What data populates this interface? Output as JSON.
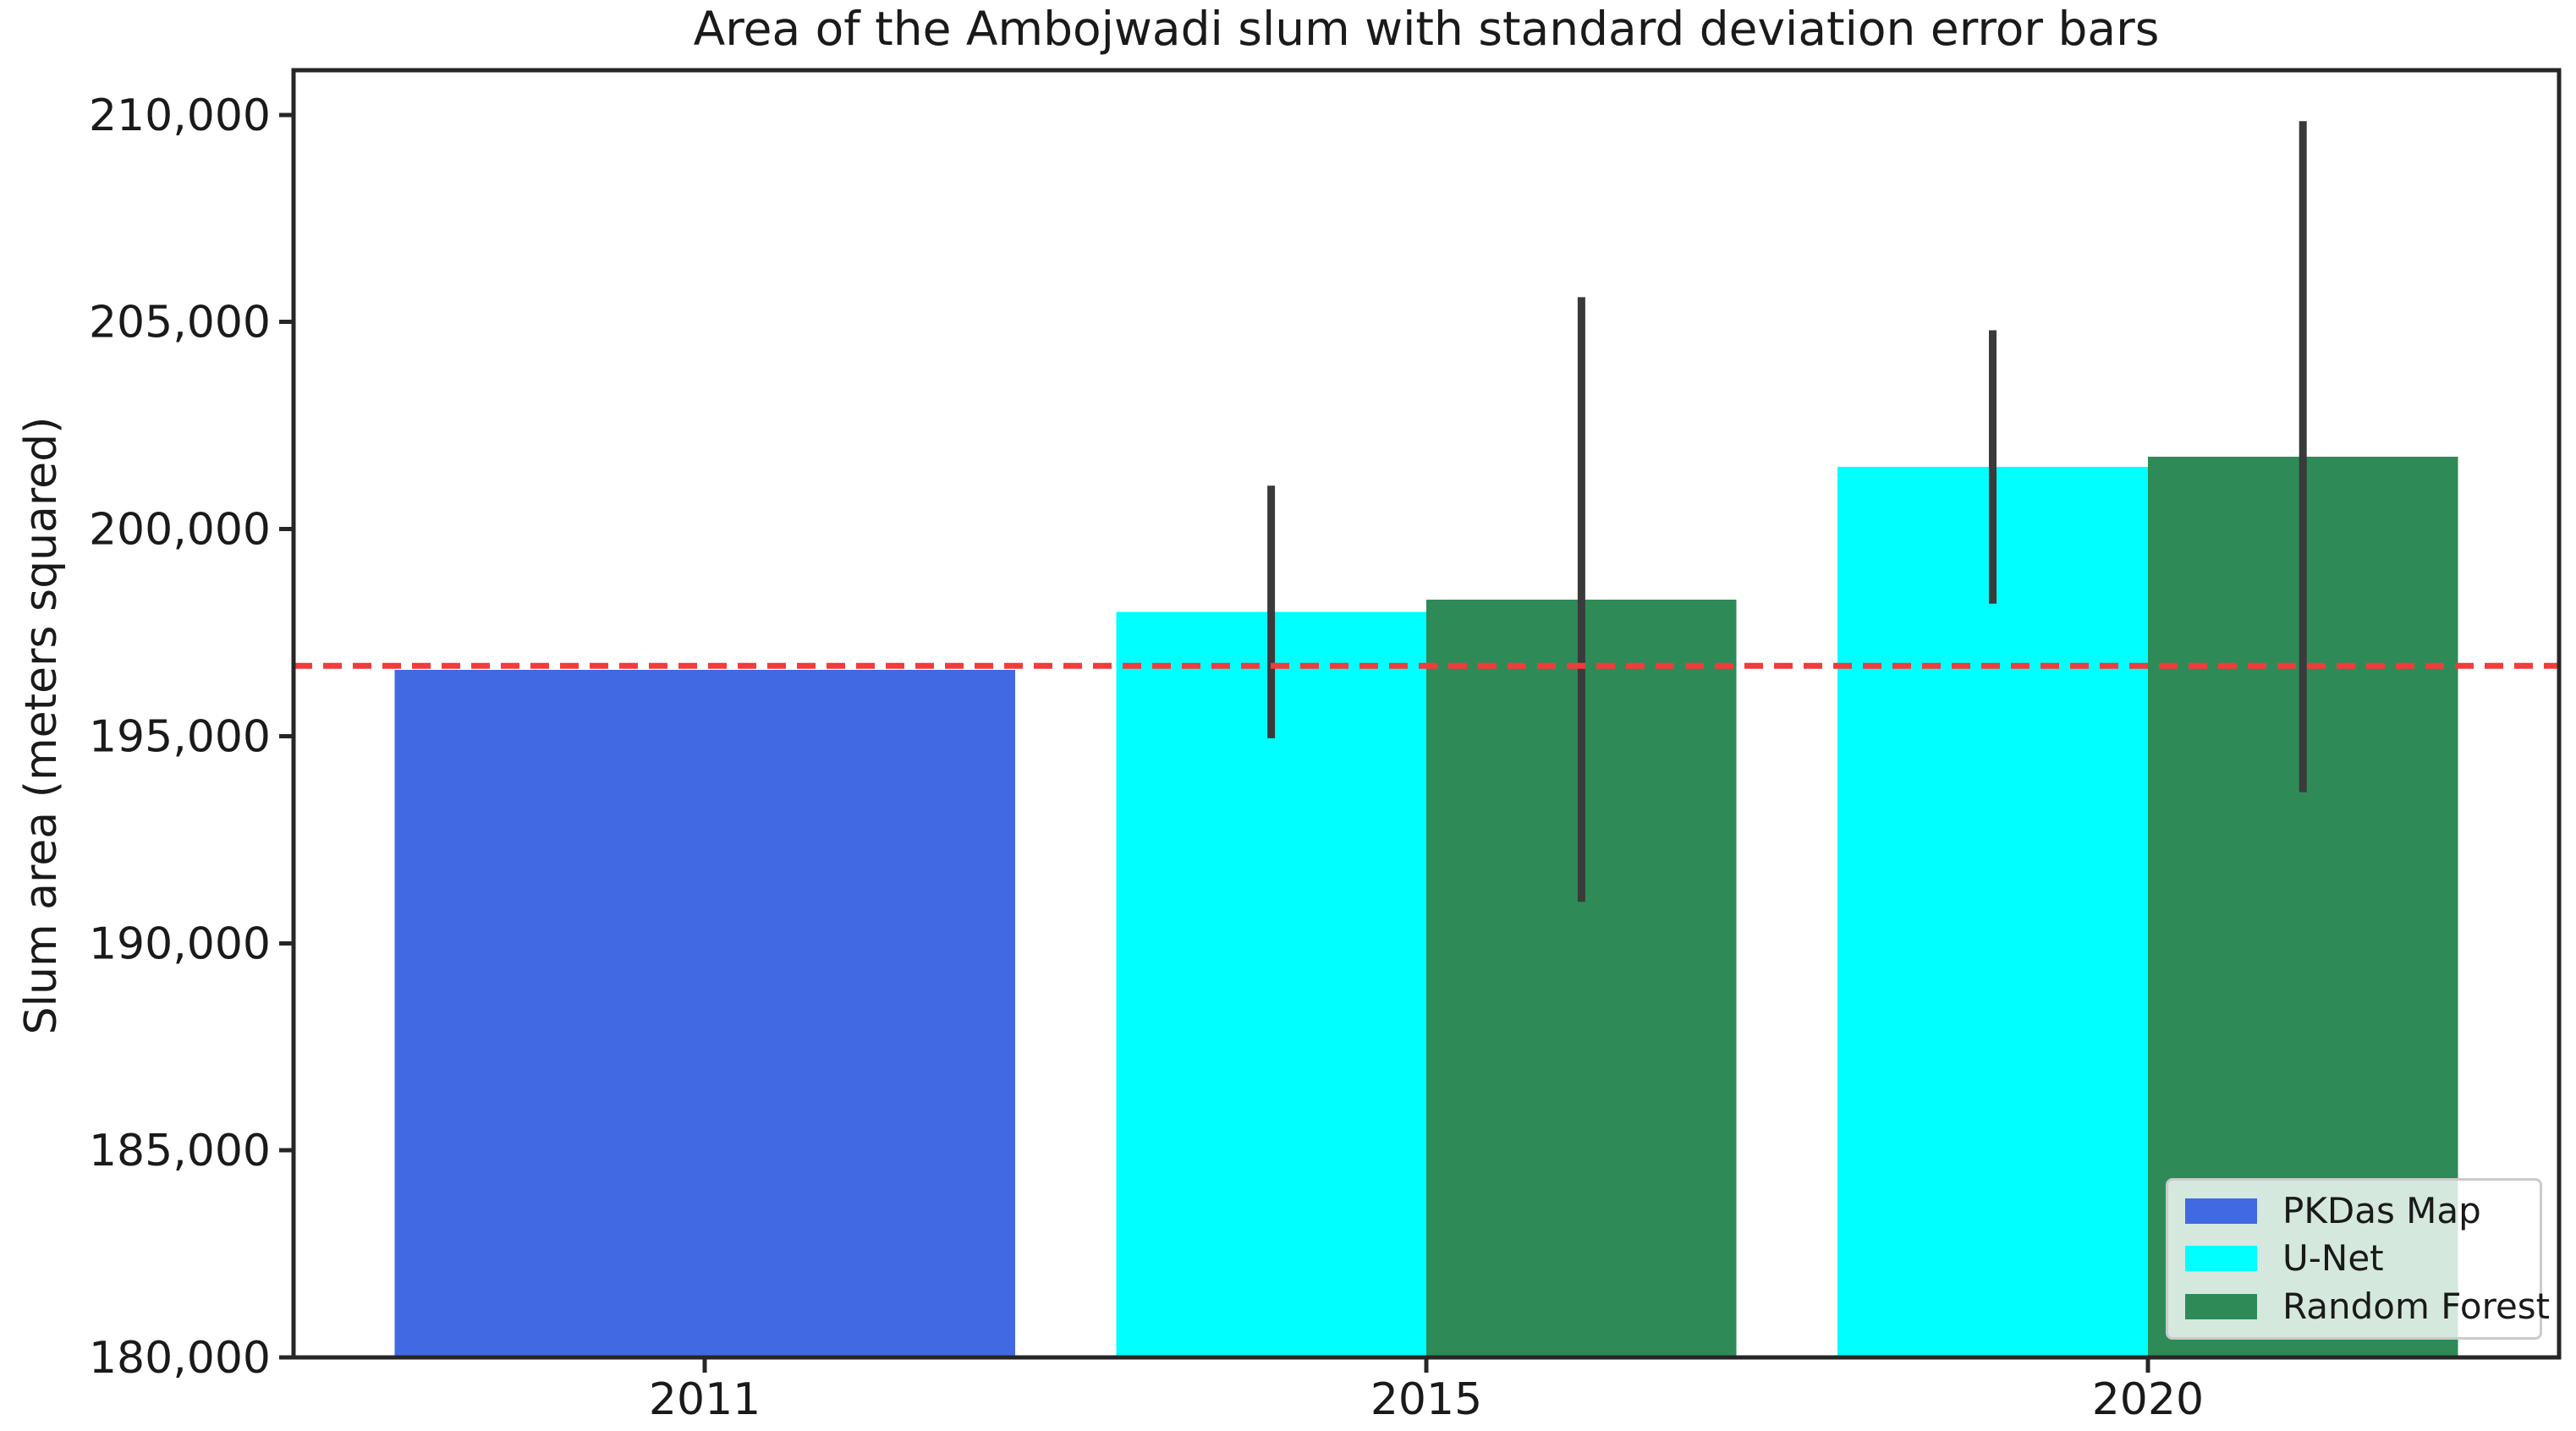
{
  "chart_data": {
    "type": "bar",
    "title": "Area of the Ambojwadi slum with standard deviation error bars",
    "xlabel": "",
    "ylabel": "Slum area (meters squared)",
    "categories": [
      "2011",
      "2015",
      "2020"
    ],
    "series": [
      {
        "name": "PKDas Map",
        "color": "#4169E1",
        "values": [
          196600,
          null,
          null
        ],
        "errors": [
          null,
          null,
          null
        ]
      },
      {
        "name": "U-Net",
        "color": "#00FFFF",
        "values": [
          null,
          198000,
          201500
        ],
        "errors": [
          null,
          3050,
          3300
        ]
      },
      {
        "name": "Random Forest",
        "color": "#2E8B57",
        "values": [
          null,
          198300,
          201750
        ],
        "errors": [
          null,
          7300,
          8100
        ]
      }
    ],
    "reference_line": {
      "value": 196700,
      "color": "#F23B3B",
      "style": "dashed"
    },
    "error_bar_color": "#3A3A3A",
    "ylim": [
      180000,
      211080
    ],
    "yticks": [
      180000,
      185000,
      190000,
      195000,
      200000,
      205000,
      210000
    ],
    "ytick_format": "comma",
    "x_positions": [
      0,
      1,
      2
    ],
    "xlim": [
      -0.57,
      2.57
    ],
    "bar_width": 0.43,
    "single_bar_width": 0.86,
    "grid": false,
    "legend": {
      "position": "lower right"
    }
  }
}
